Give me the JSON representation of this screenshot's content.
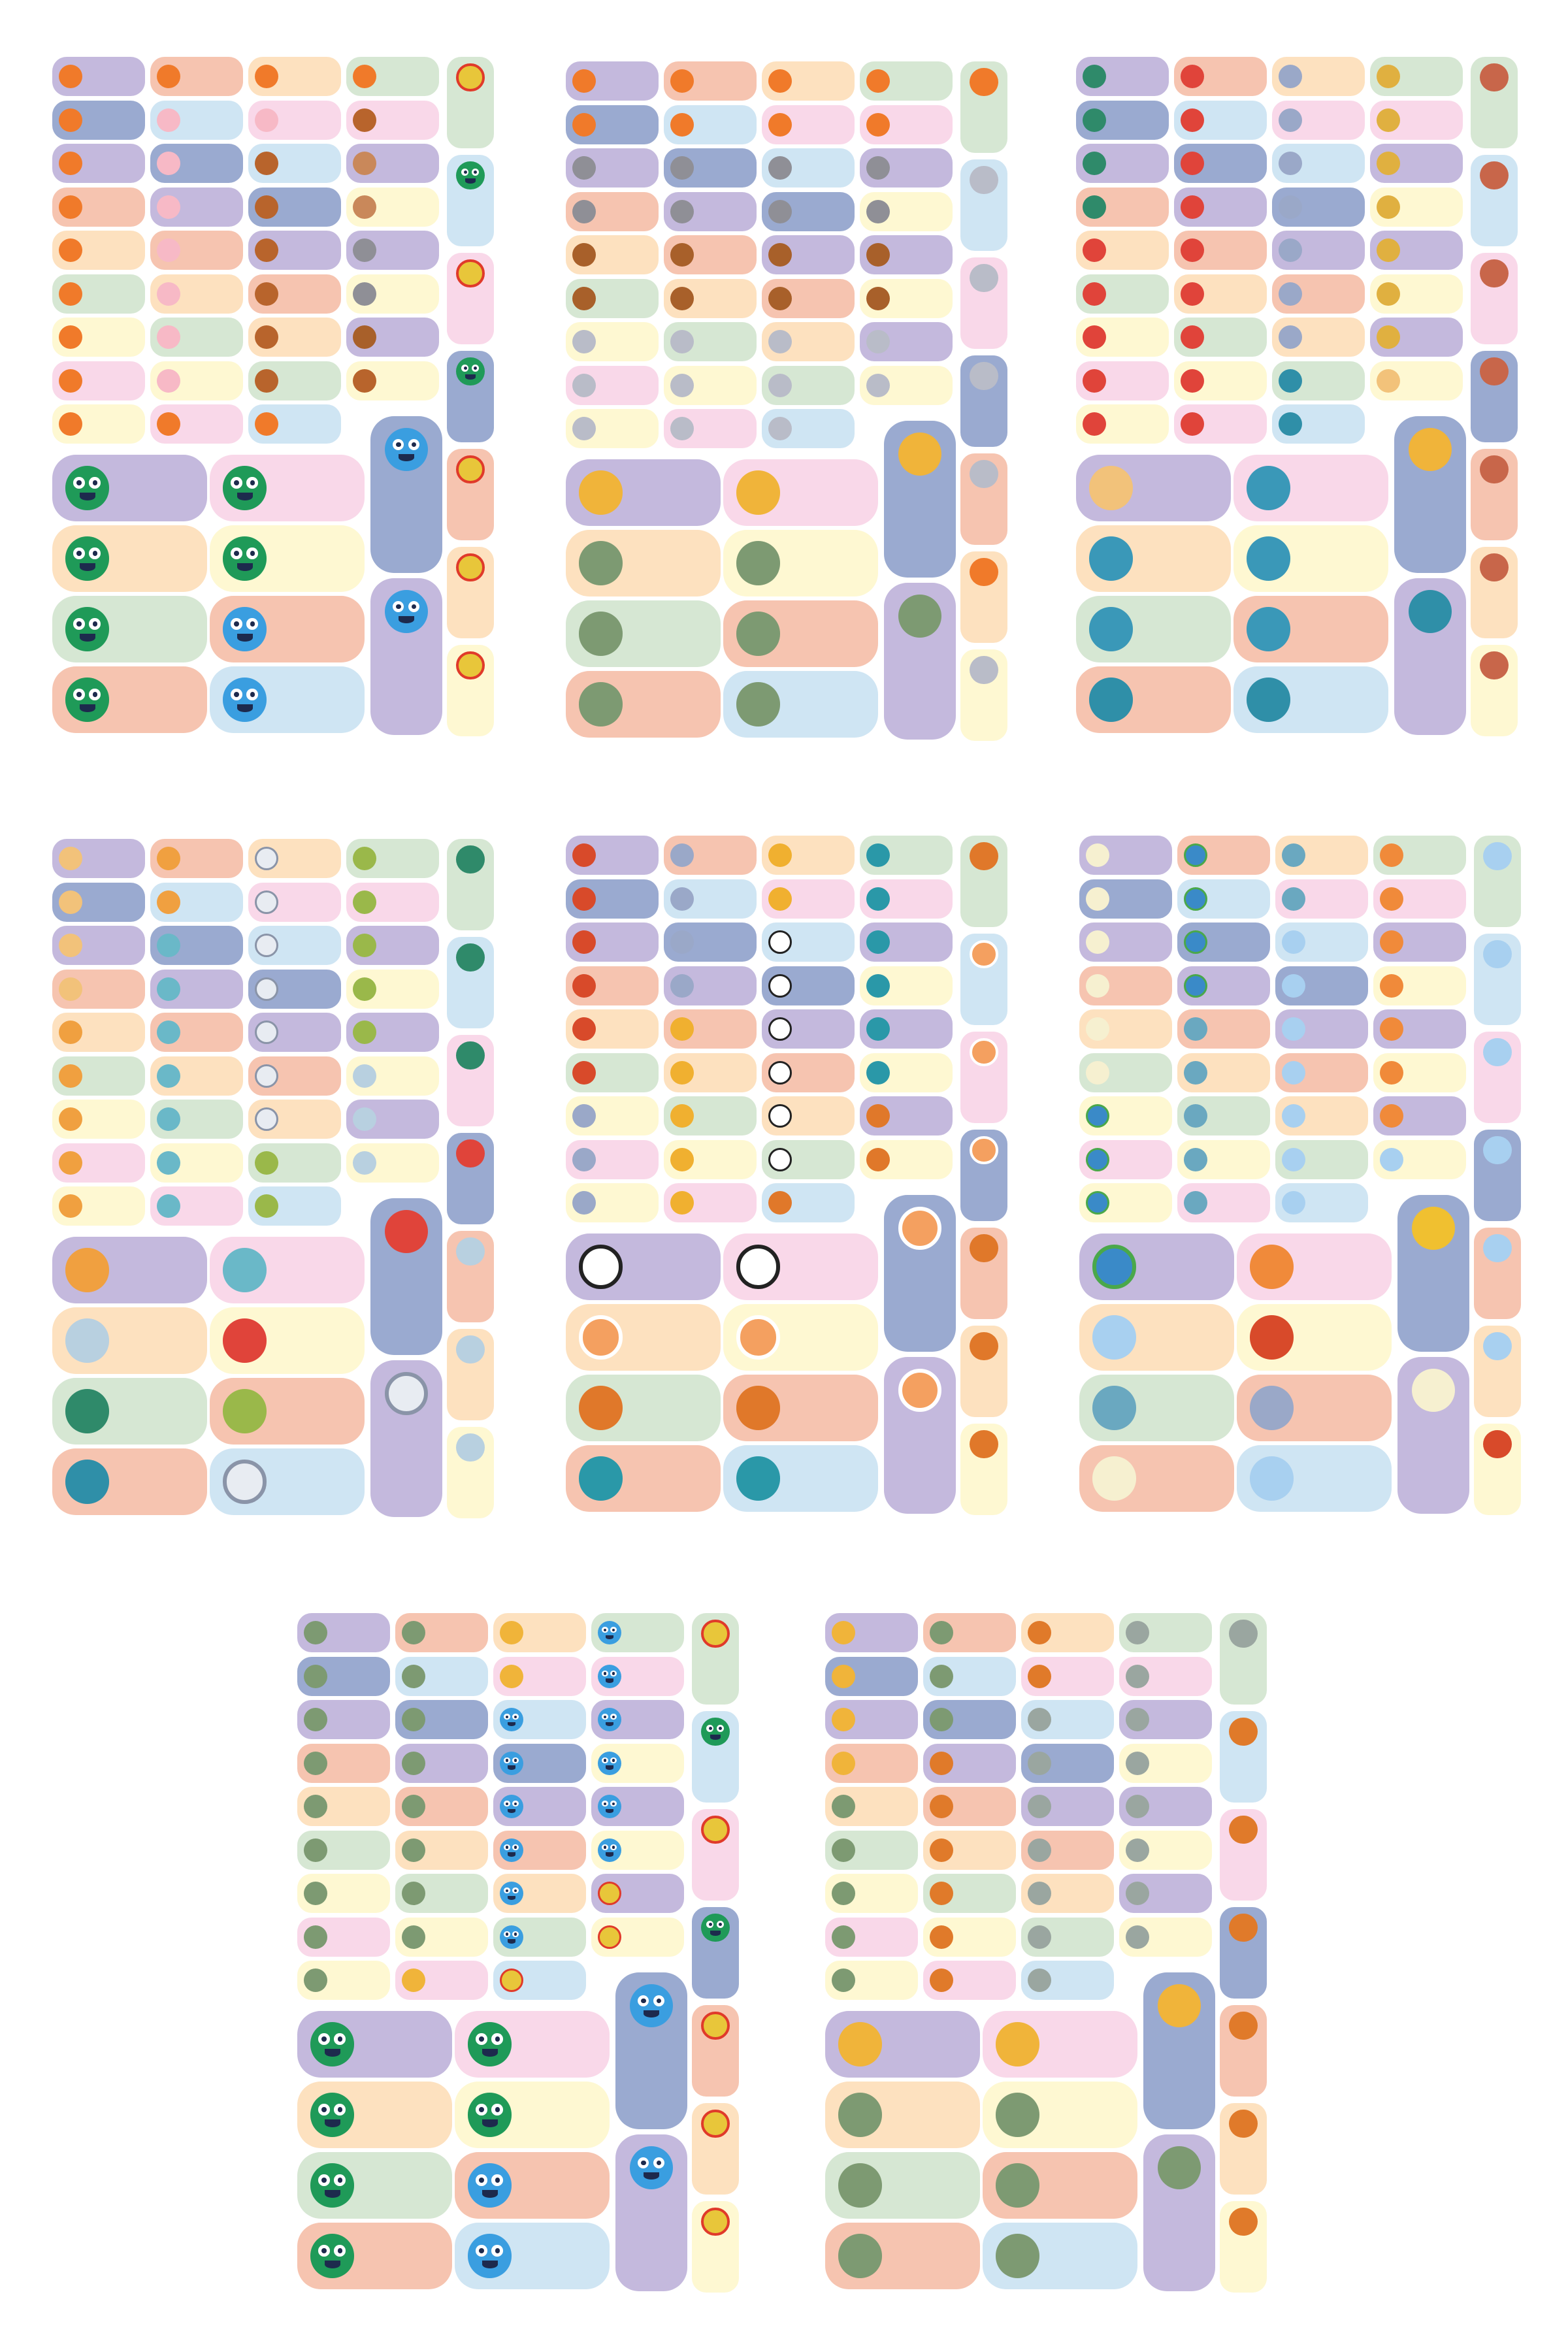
{
  "palette": {
    "P": "#c4b9dd",
    "S": "#f6c4b0",
    "O": "#fde1bf",
    "G": "#d6e7d3",
    "B": "#9aaad0",
    "L": "#cfe5f3",
    "K": "#f9d8e9",
    "Y": "#fef8d2"
  },
  "color_pattern": {
    "grid": [
      [
        "P",
        "B",
        "P",
        "S",
        "O",
        "G",
        "Y",
        "K",
        "Y"
      ],
      [
        "S",
        "L",
        "B",
        "P",
        "S",
        "O",
        "G",
        "Y",
        "K"
      ],
      [
        "O",
        "K",
        "L",
        "B",
        "P",
        "S",
        "O",
        "G",
        "L"
      ],
      [
        "G",
        "K",
        "P",
        "Y",
        "P",
        "Y",
        "P",
        "Y"
      ]
    ],
    "narrow": [
      "G",
      "L",
      "K",
      "B",
      "S",
      "O",
      "Y"
    ],
    "big_left": [
      "P",
      "O",
      "G",
      "S"
    ],
    "big_right": [
      "K",
      "Y",
      "S",
      "L"
    ],
    "tall": [
      "B",
      "P"
    ]
  },
  "icons": {
    "fox": {
      "color": "#f07a2a",
      "face": false
    },
    "pig": {
      "color": "#f7b9c6",
      "face": false
    },
    "dog": {
      "color": "#b8642c",
      "face": false
    },
    "deer": {
      "color": "#c9885a",
      "face": false
    },
    "hippo": {
      "color": "#8f8f96",
      "face": false
    },
    "monkey": {
      "color": "#a8602a",
      "face": false
    },
    "koala": {
      "color": "#b9bcc8",
      "face": false
    },
    "coin": {
      "color": "#e8c63a",
      "face": false,
      "ring": "#e03a2a"
    },
    "green-monster": {
      "color": "#1f9a58",
      "face": true
    },
    "blue-monster": {
      "color": "#3a9ee0",
      "face": true
    },
    "dinosaur": {
      "color": "#7d9a72",
      "face": false
    },
    "yellow-dinosaur": {
      "color": "#f0b43a",
      "face": false
    },
    "pterosaur": {
      "color": "#e07a2a",
      "face": false
    },
    "stegosaurus": {
      "color": "#9aa6a0",
      "face": false
    },
    "tractor": {
      "color": "#2f8a6a",
      "face": false
    },
    "fire-truck": {
      "color": "#e0443a",
      "face": false
    },
    "rocket": {
      "color": "#9aa8c8",
      "face": false
    },
    "trophy": {
      "color": "#e0b040",
      "face": false
    },
    "kettlebell": {
      "color": "#2f8fa8",
      "face": false
    },
    "mushroom": {
      "color": "#3a98b8",
      "face": false
    },
    "football": {
      "color": "#c8664a",
      "face": false
    },
    "cake": {
      "color": "#f2c27a",
      "face": false
    },
    "car": {
      "color": "#f0a040",
      "face": false
    },
    "balloon": {
      "color": "#6ab8c8",
      "face": false
    },
    "ambulance": {
      "color": "#e8ecf2",
      "face": false,
      "ring": "#8a94a8"
    },
    "helicopter": {
      "color": "#9ab84a",
      "face": false
    },
    "boat": {
      "color": "#b8d0e0",
      "face": false
    },
    "mars": {
      "color": "#d84a2a",
      "face": false
    },
    "torch": {
      "color": "#f0b030",
      "face": false
    },
    "boxing-glove": {
      "color": "#2a98a8",
      "face": false
    },
    "soccer-ball": {
      "color": "#ffffff",
      "face": false,
      "ring": "#222222"
    },
    "basketball": {
      "color": "#e0782a",
      "face": false
    },
    "lifebuoy": {
      "color": "#f4a060",
      "face": false,
      "ring": "#ffffff"
    },
    "moon": {
      "color": "#f6f0d0",
      "face": false
    },
    "earth": {
      "color": "#3a8ac8",
      "face": false,
      "ring": "#4aa84a"
    },
    "neptune": {
      "color": "#6aa8c0",
      "face": false
    },
    "jupiter": {
      "color": "#f08a3a",
      "face": false
    },
    "saturn": {
      "color": "#a8d0f0",
      "face": false
    },
    "comet": {
      "color": "#f0c030",
      "face": false
    }
  },
  "sheets": [
    {
      "grid": [
        [
          "fox",
          "fox",
          "fox",
          "fox",
          "fox",
          "fox",
          "fox",
          "fox",
          "fox"
        ],
        [
          "fox",
          "pig",
          "pig",
          "pig",
          "pig",
          "pig",
          "pig",
          "pig",
          "fox"
        ],
        [
          "fox",
          "pig",
          "dog",
          "dog",
          "dog",
          "dog",
          "dog",
          "dog",
          "fox"
        ],
        [
          "fox",
          "dog",
          "deer",
          "deer",
          "hippo",
          "hippo",
          "monkey",
          "dog"
        ]
      ],
      "narrow": [
        "coin",
        "green-monster",
        "coin",
        "green-monster",
        "coin",
        "coin",
        "coin"
      ],
      "big_left": [
        "green-monster",
        "green-monster",
        "green-monster",
        "green-monster"
      ],
      "big_right": [
        "green-monster",
        "green-monster",
        "blue-monster",
        "blue-monster"
      ],
      "tall": [
        "blue-monster",
        "blue-monster"
      ]
    },
    {
      "grid": [
        [
          "fox",
          "fox",
          "hippo",
          "hippo",
          "monkey",
          "monkey",
          "koala",
          "koala",
          "koala"
        ],
        [
          "fox",
          "fox",
          "hippo",
          "hippo",
          "monkey",
          "monkey",
          "koala",
          "koala",
          "koala"
        ],
        [
          "fox",
          "fox",
          "hippo",
          "hippo",
          "monkey",
          "monkey",
          "koala",
          "koala",
          "koala"
        ],
        [
          "fox",
          "fox",
          "hippo",
          "hippo",
          "monkey",
          "monkey",
          "koala",
          "koala"
        ]
      ],
      "narrow": [
        "fox",
        "koala",
        "koala",
        "koala",
        "koala",
        "fox",
        "koala"
      ],
      "big_left": [
        "yellow-dinosaur",
        "dinosaur",
        "dinosaur",
        "dinosaur"
      ],
      "big_right": [
        "yellow-dinosaur",
        "dinosaur",
        "dinosaur",
        "dinosaur"
      ],
      "tall": [
        "yellow-dinosaur",
        "dinosaur"
      ]
    },
    {
      "grid": [
        [
          "tractor",
          "tractor",
          "tractor",
          "tractor",
          "fire-truck",
          "fire-truck",
          "fire-truck",
          "fire-truck",
          "fire-truck"
        ],
        [
          "fire-truck",
          "fire-truck",
          "fire-truck",
          "fire-truck",
          "fire-truck",
          "fire-truck",
          "fire-truck",
          "fire-truck",
          "fire-truck"
        ],
        [
          "rocket",
          "rocket",
          "rocket",
          "rocket",
          "rocket",
          "rocket",
          "rocket",
          "kettlebell",
          "kettlebell"
        ],
        [
          "trophy",
          "trophy",
          "trophy",
          "trophy",
          "trophy",
          "trophy",
          "trophy",
          "cake"
        ]
      ],
      "narrow": [
        "football",
        "football",
        "football",
        "football",
        "football",
        "football",
        "football"
      ],
      "big_left": [
        "cake",
        "mushroom",
        "mushroom",
        "kettlebell"
      ],
      "big_right": [
        "mushroom",
        "mushroom",
        "mushroom",
        "kettlebell"
      ],
      "tall": [
        "yellow-dinosaur",
        "kettlebell"
      ]
    },
    {
      "grid": [
        [
          "cake",
          "cake",
          "cake",
          "cake",
          "car",
          "car",
          "car",
          "car",
          "car"
        ],
        [
          "car",
          "car",
          "balloon",
          "balloon",
          "balloon",
          "balloon",
          "balloon",
          "balloon",
          "balloon"
        ],
        [
          "ambulance",
          "ambulance",
          "ambulance",
          "ambulance",
          "ambulance",
          "ambulance",
          "ambulance",
          "helicopter",
          "helicopter"
        ],
        [
          "helicopter",
          "helicopter",
          "helicopter",
          "helicopter",
          "helicopter",
          "boat",
          "boat",
          "boat"
        ]
      ],
      "narrow": [
        "tractor",
        "tractor",
        "tractor",
        "fire-truck",
        "boat",
        "boat",
        "boat"
      ],
      "big_left": [
        "car",
        "boat",
        "tractor",
        "kettlebell"
      ],
      "big_right": [
        "balloon",
        "fire-truck",
        "helicopter",
        "ambulance"
      ],
      "tall": [
        "fire-truck",
        "ambulance"
      ]
    },
    {
      "grid": [
        [
          "mars",
          "mars",
          "mars",
          "mars",
          "mars",
          "mars",
          "rocket",
          "rocket",
          "rocket"
        ],
        [
          "rocket",
          "rocket",
          "rocket",
          "rocket",
          "torch",
          "torch",
          "torch",
          "torch",
          "torch"
        ],
        [
          "torch",
          "torch",
          "soccer-ball",
          "soccer-ball",
          "soccer-ball",
          "soccer-ball",
          "soccer-ball",
          "soccer-ball",
          "basketball"
        ],
        [
          "boxing-glove",
          "boxing-glove",
          "boxing-glove",
          "boxing-glove",
          "boxing-glove",
          "boxing-glove",
          "basketball",
          "basketball"
        ]
      ],
      "narrow": [
        "basketball",
        "lifebuoy",
        "lifebuoy",
        "lifebuoy",
        "basketball",
        "basketball",
        "basketball"
      ],
      "big_left": [
        "soccer-ball",
        "lifebuoy",
        "basketball",
        "boxing-glove"
      ],
      "big_right": [
        "soccer-ball",
        "lifebuoy",
        "basketball",
        "boxing-glove"
      ],
      "tall": [
        "lifebuoy",
        "lifebuoy"
      ]
    },
    {
      "grid": [
        [
          "moon",
          "moon",
          "moon",
          "moon",
          "moon",
          "moon",
          "earth",
          "earth",
          "earth"
        ],
        [
          "earth",
          "earth",
          "earth",
          "earth",
          "neptune",
          "neptune",
          "neptune",
          "neptune",
          "neptune"
        ],
        [
          "neptune",
          "neptune",
          "saturn",
          "saturn",
          "saturn",
          "saturn",
          "saturn",
          "saturn",
          "saturn"
        ],
        [
          "jupiter",
          "jupiter",
          "jupiter",
          "jupiter",
          "jupiter",
          "jupiter",
          "jupiter",
          "saturn"
        ]
      ],
      "narrow": [
        "saturn",
        "saturn",
        "saturn",
        "saturn",
        "saturn",
        "saturn",
        "mars"
      ],
      "big_left": [
        "earth",
        "saturn",
        "neptune",
        "moon"
      ],
      "big_right": [
        "jupiter",
        "mars",
        "rocket",
        "saturn"
      ],
      "tall": [
        "comet",
        "moon"
      ]
    },
    {
      "grid": [
        [
          "dinosaur",
          "dinosaur",
          "dinosaur",
          "dinosaur",
          "dinosaur",
          "dinosaur",
          "dinosaur",
          "dinosaur",
          "dinosaur"
        ],
        [
          "dinosaur",
          "dinosaur",
          "dinosaur",
          "dinosaur",
          "dinosaur",
          "dinosaur",
          "dinosaur",
          "dinosaur",
          "yellow-dinosaur"
        ],
        [
          "yellow-dinosaur",
          "yellow-dinosaur",
          "blue-monster",
          "blue-monster",
          "blue-monster",
          "blue-monster",
          "blue-monster",
          "blue-monster",
          "coin"
        ],
        [
          "blue-monster",
          "blue-monster",
          "blue-monster",
          "blue-monster",
          "blue-monster",
          "blue-monster",
          "coin",
          "coin"
        ]
      ],
      "narrow": [
        "coin",
        "green-monster",
        "coin",
        "green-monster",
        "coin",
        "coin",
        "coin"
      ],
      "big_left": [
        "green-monster",
        "green-monster",
        "green-monster",
        "green-monster"
      ],
      "big_right": [
        "green-monster",
        "green-monster",
        "blue-monster",
        "blue-monster"
      ],
      "tall": [
        "blue-monster",
        "blue-monster"
      ]
    },
    {
      "grid": [
        [
          "yellow-dinosaur",
          "yellow-dinosaur",
          "yellow-dinosaur",
          "yellow-dinosaur",
          "dinosaur",
          "dinosaur",
          "dinosaur",
          "dinosaur",
          "dinosaur"
        ],
        [
          "dinosaur",
          "dinosaur",
          "dinosaur",
          "pterosaur",
          "pterosaur",
          "pterosaur",
          "pterosaur",
          "pterosaur",
          "pterosaur"
        ],
        [
          "pterosaur",
          "pterosaur",
          "stegosaurus",
          "stegosaurus",
          "stegosaurus",
          "stegosaurus",
          "stegosaurus",
          "stegosaurus",
          "stegosaurus"
        ],
        [
          "stegosaurus",
          "stegosaurus",
          "stegosaurus",
          "stegosaurus",
          "stegosaurus",
          "stegosaurus",
          "stegosaurus",
          "stegosaurus"
        ]
      ],
      "narrow": [
        "stegosaurus",
        "pterosaur",
        "pterosaur",
        "pterosaur",
        "pterosaur",
        "pterosaur",
        "pterosaur"
      ],
      "big_left": [
        "yellow-dinosaur",
        "dinosaur",
        "dinosaur",
        "dinosaur"
      ],
      "big_right": [
        "yellow-dinosaur",
        "dinosaur",
        "dinosaur",
        "dinosaur"
      ],
      "tall": [
        "yellow-dinosaur",
        "dinosaur"
      ]
    }
  ]
}
